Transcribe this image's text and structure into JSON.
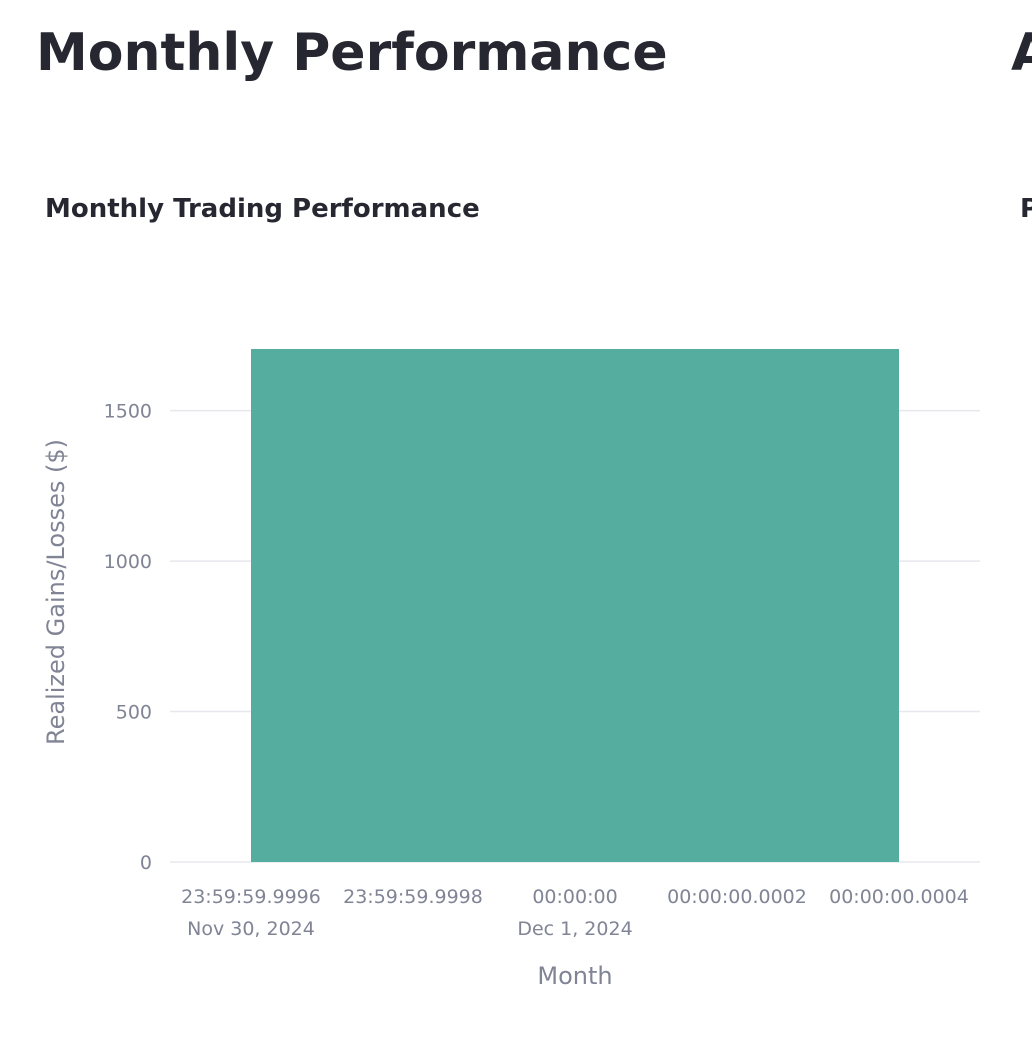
{
  "page": {
    "title": "Monthly Performance",
    "next_title_fragment": "A",
    "next_chart_title_fragment": "P"
  },
  "chart_data": {
    "type": "bar",
    "title": "Monthly Trading Performance",
    "xlabel": "Month",
    "ylabel": "Realized Gains/Losses ($)",
    "categories": [
      "2024-12-01"
    ],
    "values": [
      1705
    ],
    "bar_color": "#55AD9F",
    "ylim": [
      0,
      1705
    ],
    "yticks": [
      0,
      500,
      1000,
      1500
    ],
    "xticks": [
      {
        "line1": "23:59:59.9996",
        "line2": "Nov 30, 2024"
      },
      {
        "line1": "23:59:59.9998",
        "line2": ""
      },
      {
        "line1": "00:00:00",
        "line2": "Dec 1, 2024"
      },
      {
        "line1": "00:00:00.0002",
        "line2": ""
      },
      {
        "line1": "00:00:00.0004",
        "line2": ""
      }
    ],
    "grid": true,
    "legend": "none"
  }
}
